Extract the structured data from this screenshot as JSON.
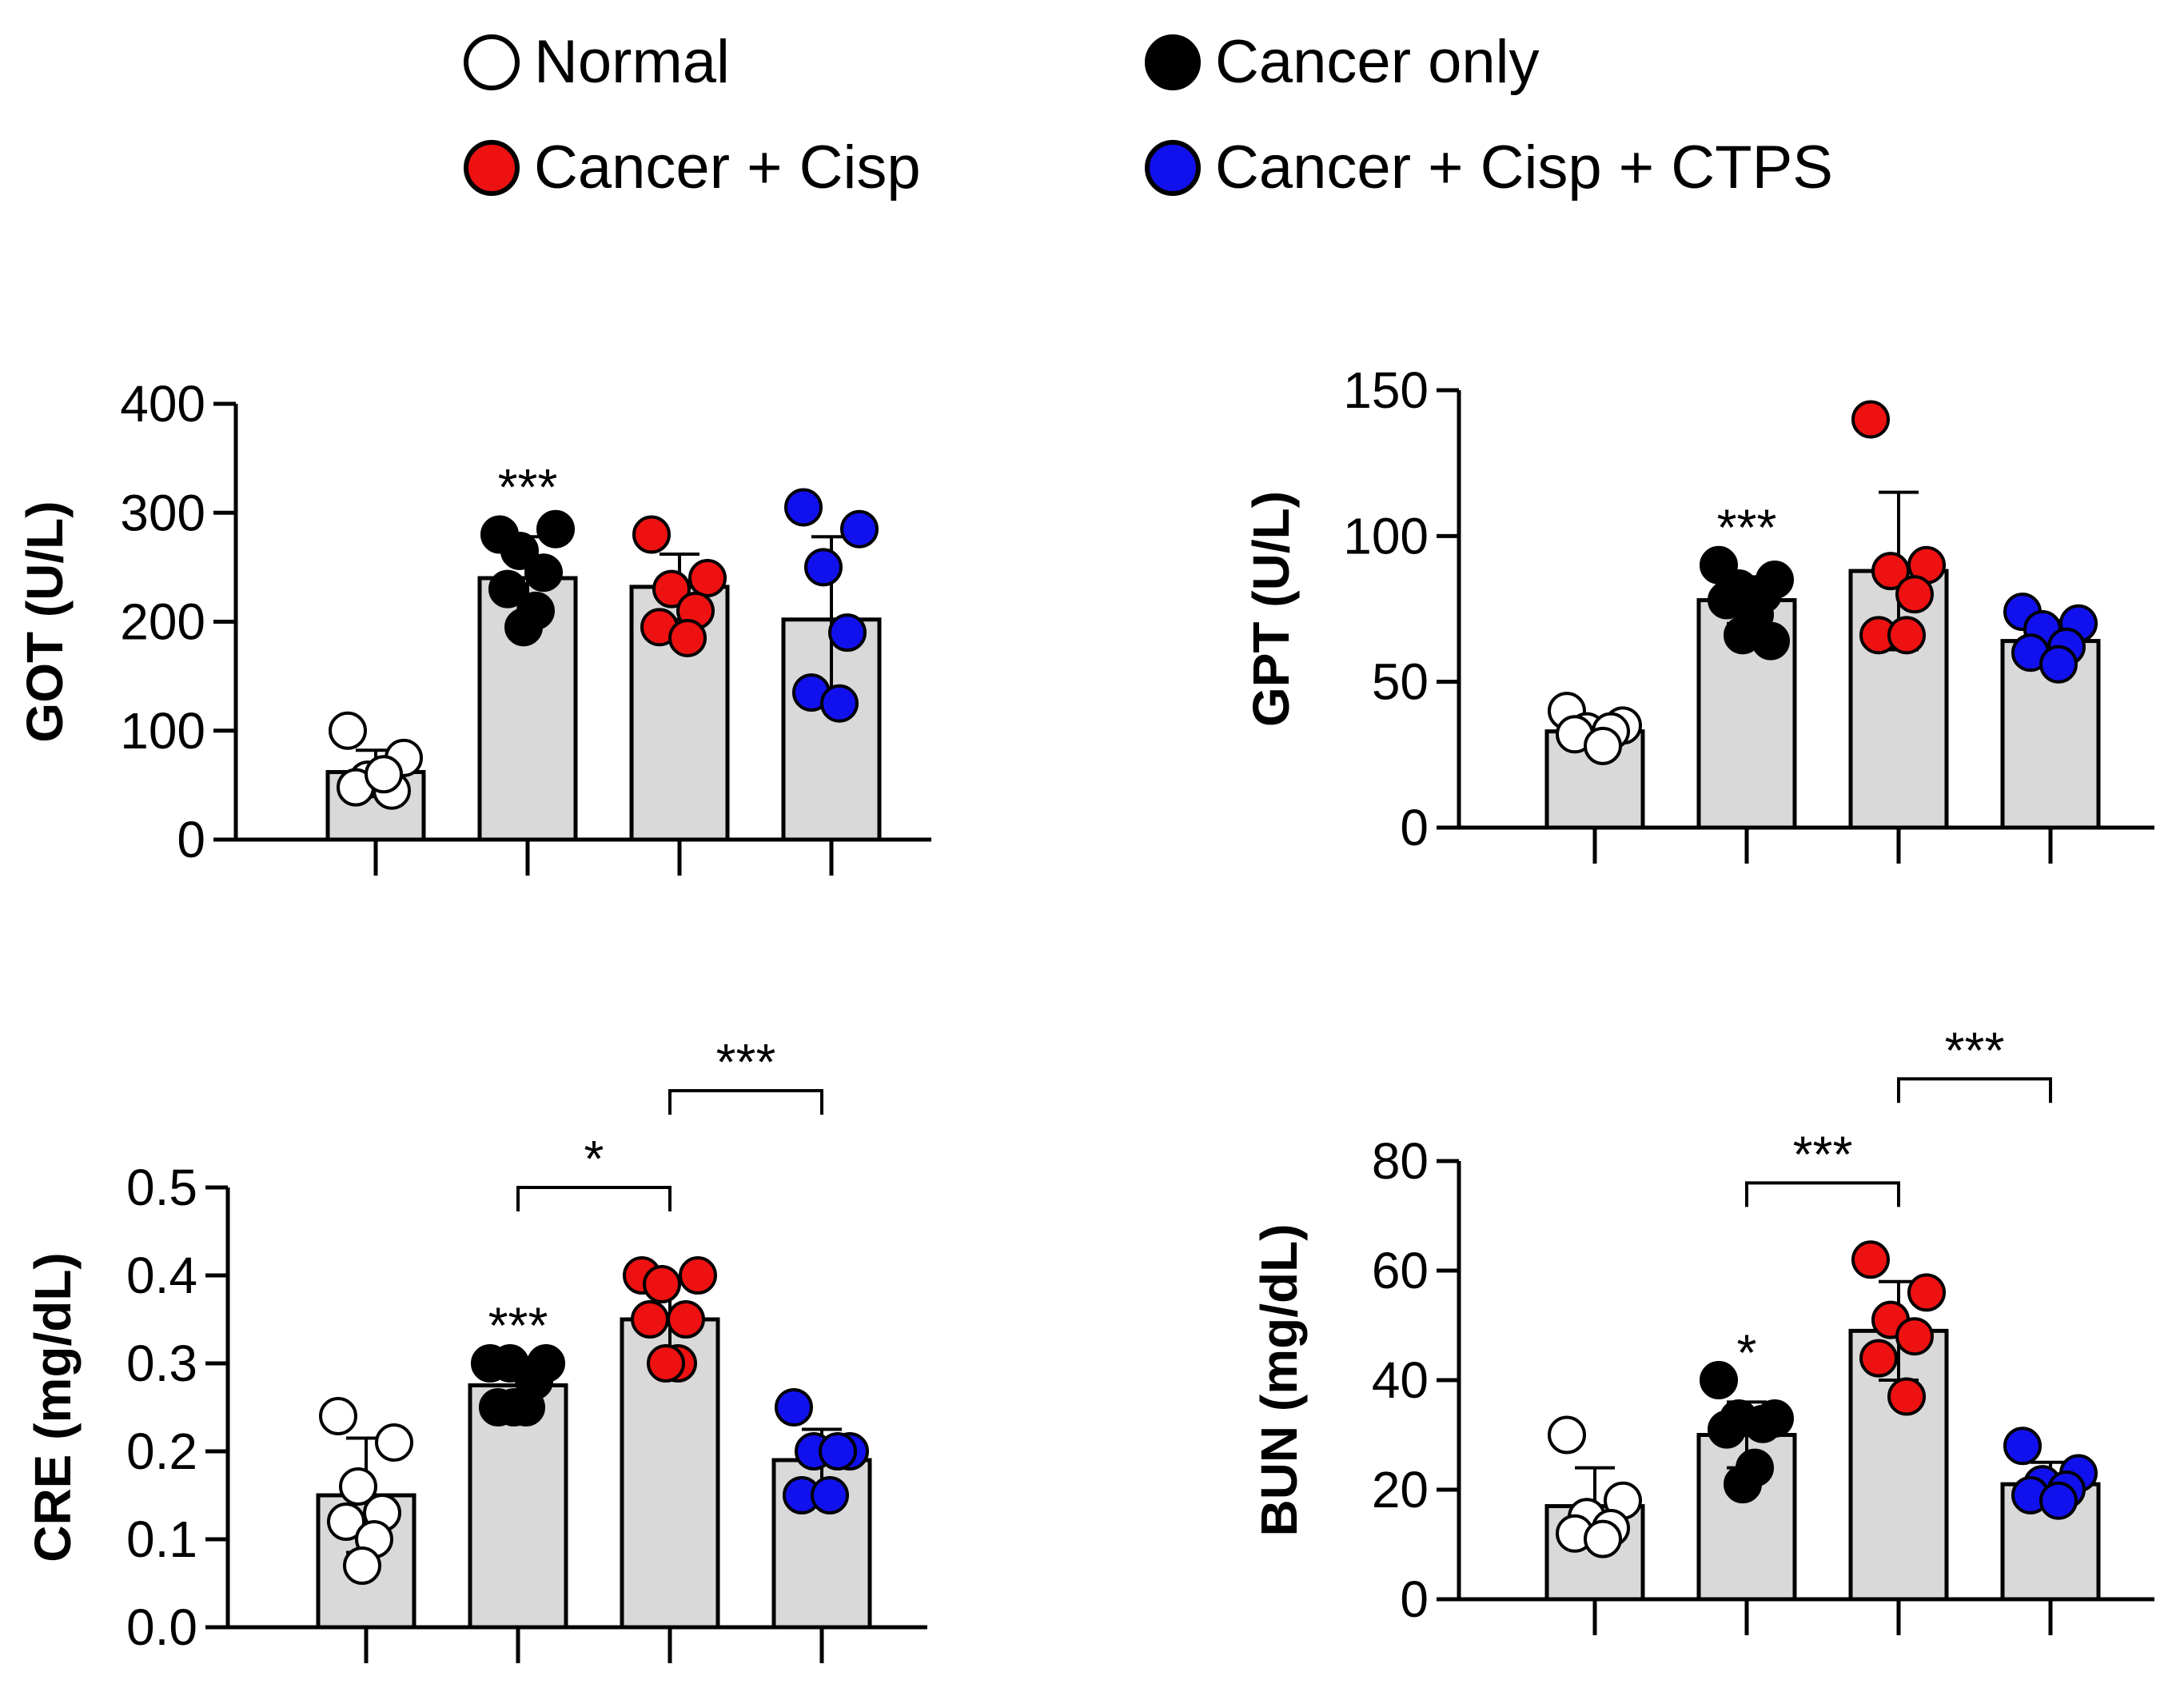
{
  "legend": [
    {
      "label": "Normal",
      "color": "#ffffff"
    },
    {
      "label": "Cancer only",
      "color": "#000000"
    },
    {
      "label": "Cancer + Cisp",
      "color": "#ee1111"
    },
    {
      "label": "Cancer + Cisp + CTPS",
      "color": "#1111ee"
    }
  ],
  "colors": {
    "bar_fill": "#d9d9d9",
    "axis": "#000000"
  },
  "chart_data": [
    {
      "type": "bar",
      "ylabel": "GOT  (U/L)",
      "ylim": [
        0,
        400
      ],
      "yticks": [
        0,
        100,
        200,
        300,
        400
      ],
      "ytick_labels": [
        "0",
        "100",
        "200",
        "300",
        "400"
      ],
      "categories": [
        "Normal",
        "Cancer only",
        "Cancer + Cisp",
        "Cancer + Cisp + CTPS"
      ],
      "means": [
        62,
        240,
        232,
        202
      ],
      "sd": [
        20,
        38,
        30,
        76
      ],
      "points": [
        [
          100,
          75,
          55,
          45,
          48,
          60
        ],
        [
          280,
          285,
          265,
          245,
          230,
          210,
          195
        ],
        [
          280,
          240,
          230,
          210,
          195,
          185
        ],
        [
          305,
          285,
          250,
          190,
          135,
          125
        ]
      ],
      "significance_above": [
        null,
        "***",
        null,
        null
      ],
      "brackets": []
    },
    {
      "type": "bar",
      "ylabel": "GPT  (U/L)",
      "ylim": [
        0,
        150
      ],
      "yticks": [
        0,
        50,
        100,
        150
      ],
      "ytick_labels": [
        "0",
        "50",
        "100",
        "150"
      ],
      "categories": [
        "Normal",
        "Cancer only",
        "Cancer + Cisp",
        "Cancer + Cisp + CTPS"
      ],
      "means": [
        33,
        78,
        88,
        64
      ],
      "sd": [
        4,
        8,
        27,
        7
      ],
      "points": [
        [
          40,
          35,
          33,
          33,
          32,
          28
        ],
        [
          90,
          85,
          82,
          80,
          78,
          73,
          66,
          64
        ],
        [
          140,
          90,
          88,
          80,
          66,
          66
        ],
        [
          74,
          70,
          68,
          62,
          60,
          56
        ]
      ],
      "significance_above": [
        null,
        "***",
        null,
        null
      ],
      "brackets": []
    },
    {
      "type": "bar",
      "ylabel": "CRE  (mg/dL)",
      "ylim": [
        0,
        0.5
      ],
      "yticks": [
        0,
        0.1,
        0.2,
        0.3,
        0.4,
        0.5
      ],
      "ytick_labels": [
        "0.0",
        "0.1",
        "0.2",
        "0.3",
        "0.4",
        "0.5"
      ],
      "categories": [
        "Normal",
        "Cancer only",
        "Cancer + Cisp",
        "Cancer + Cisp + CTPS"
      ],
      "means": [
        0.15,
        0.275,
        0.35,
        0.19
      ],
      "sd": [
        0.065,
        0.012,
        0.045,
        0.035
      ],
      "points": [
        [
          0.24,
          0.21,
          0.16,
          0.13,
          0.12,
          0.1,
          0.07
        ],
        [
          0.3,
          0.3,
          0.3,
          0.28,
          0.25,
          0.25,
          0.25
        ],
        [
          0.4,
          0.4,
          0.39,
          0.35,
          0.35,
          0.3,
          0.3
        ],
        [
          0.25,
          0.2,
          0.2,
          0.2,
          0.15,
          0.15
        ]
      ],
      "significance_above": [
        null,
        "***",
        null,
        null
      ],
      "brackets": [
        {
          "from": 1,
          "to": 2,
          "label": "*",
          "y": 0.5
        },
        {
          "from": 2,
          "to": 3,
          "label": "***",
          "y": 0.61
        }
      ]
    },
    {
      "type": "bar",
      "ylabel": "BUN (mg/dL)",
      "ylim": [
        0,
        80
      ],
      "yticks": [
        0,
        20,
        40,
        60,
        80
      ],
      "ytick_labels": [
        "0",
        "20",
        "40",
        "60",
        "80"
      ],
      "categories": [
        "Normal",
        "Cancer only",
        "Cancer + Cisp",
        "Cancer + Cisp + CTPS"
      ],
      "means": [
        17,
        30,
        49,
        21
      ],
      "sd": [
        7,
        6,
        9,
        4
      ],
      "points": [
        [
          30,
          18,
          15,
          13,
          12,
          11
        ],
        [
          40,
          33,
          33,
          32,
          31,
          24,
          21
        ],
        [
          62,
          56,
          51,
          48,
          44,
          37
        ],
        [
          28,
          23,
          21,
          20,
          19,
          18
        ]
      ],
      "significance_above": [
        null,
        "*",
        null,
        null
      ],
      "brackets": [
        {
          "from": 1,
          "to": 2,
          "label": "***",
          "y": 76
        },
        {
          "from": 2,
          "to": 3,
          "label": "***",
          "y": 95
        }
      ]
    }
  ]
}
